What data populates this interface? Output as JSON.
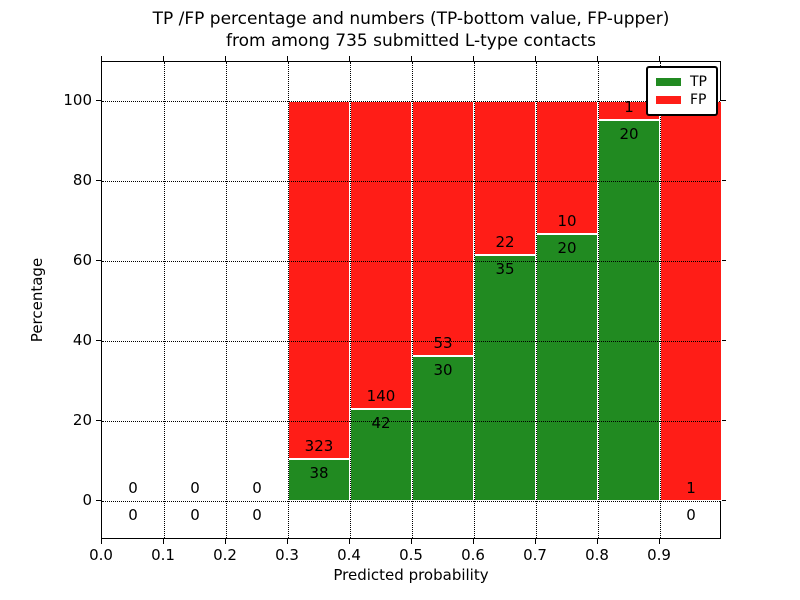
{
  "chart_data": {
    "type": "bar",
    "subtype": "stacked-100-percent-histogram",
    "title_line1": "TP /FP percentage and numbers (TP-bottom value, FP-upper)",
    "title_line2": "from among 735 submitted L-type contacts",
    "xlabel": "Predicted probability",
    "ylabel": "Percentage",
    "x_tick_labels": [
      "0.0",
      "0.1",
      "0.2",
      "0.3",
      "0.4",
      "0.5",
      "0.6",
      "0.7",
      "0.8",
      "0.9"
    ],
    "y_tick_labels": [
      "0",
      "20",
      "40",
      "60",
      "80",
      "100"
    ],
    "y_tick_values": [
      0,
      20,
      40,
      60,
      80,
      100
    ],
    "xlim": [
      0.0,
      1.0
    ],
    "ylim": [
      -10,
      110
    ],
    "grid": "dotted",
    "bin_width": 0.1,
    "total_contacts": 735,
    "series": [
      {
        "name": "TP",
        "color": "#218a21",
        "position": "bottom"
      },
      {
        "name": "FP",
        "color": "#ff1d17",
        "position": "top"
      }
    ],
    "edge_color": "#ffffff",
    "legend_position": "upper right",
    "bins": [
      {
        "x_start": 0.0,
        "x_end": 0.1,
        "tp": 0,
        "fp": 0
      },
      {
        "x_start": 0.1,
        "x_end": 0.2,
        "tp": 0,
        "fp": 0
      },
      {
        "x_start": 0.2,
        "x_end": 0.3,
        "tp": 0,
        "fp": 0
      },
      {
        "x_start": 0.3,
        "x_end": 0.4,
        "tp": 38,
        "fp": 323
      },
      {
        "x_start": 0.4,
        "x_end": 0.5,
        "tp": 42,
        "fp": 140
      },
      {
        "x_start": 0.5,
        "x_end": 0.6,
        "tp": 30,
        "fp": 53
      },
      {
        "x_start": 0.6,
        "x_end": 0.7,
        "tp": 35,
        "fp": 22
      },
      {
        "x_start": 0.7,
        "x_end": 0.8,
        "tp": 20,
        "fp": 10
      },
      {
        "x_start": 0.8,
        "x_end": 0.9,
        "tp": 20,
        "fp": 1
      },
      {
        "x_start": 0.9,
        "x_end": 1.0,
        "tp": 0,
        "fp": 1
      }
    ]
  }
}
